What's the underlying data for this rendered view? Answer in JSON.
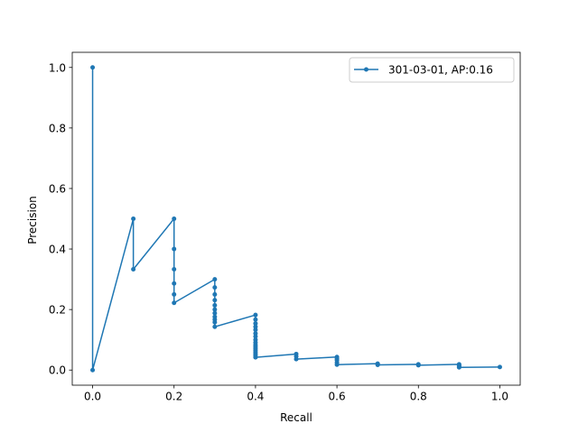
{
  "chart_data": {
    "type": "line",
    "title": "",
    "xlabel": "Recall",
    "ylabel": "Precision",
    "xlim": [
      -0.05,
      1.05
    ],
    "ylim": [
      -0.05,
      1.05
    ],
    "xticks": [
      0.0,
      0.2,
      0.4,
      0.6,
      0.8,
      1.0
    ],
    "xtick_labels": [
      "0.0",
      "0.2",
      "0.4",
      "0.6",
      "0.8",
      "1.0"
    ],
    "yticks": [
      0.0,
      0.2,
      0.4,
      0.6,
      0.8,
      1.0
    ],
    "ytick_labels": [
      "0.0",
      "0.2",
      "0.4",
      "0.6",
      "0.8",
      "1.0"
    ],
    "grid": false,
    "legend_position": "top-right",
    "color": "#1f77b4",
    "series": [
      {
        "name": "301-03-01, AP:0.16",
        "x": [
          0.0,
          0.0,
          0.1,
          0.1,
          0.2,
          0.2,
          0.2,
          0.2,
          0.2,
          0.2,
          0.3,
          0.3,
          0.3,
          0.3,
          0.3,
          0.3,
          0.3,
          0.3,
          0.3,
          0.3,
          0.3,
          0.4,
          0.4,
          0.4,
          0.4,
          0.4,
          0.4,
          0.4,
          0.4,
          0.4,
          0.4,
          0.4,
          0.4,
          0.4,
          0.4,
          0.4,
          0.4,
          0.4,
          0.5,
          0.5,
          0.5,
          0.6,
          0.6,
          0.6,
          0.6,
          0.6,
          0.7,
          0.7,
          0.7,
          0.8,
          0.8,
          0.8,
          0.9,
          0.9,
          0.9,
          0.9,
          0.9,
          1.0
        ],
        "y": [
          1.0,
          0.0,
          0.5,
          0.333,
          0.5,
          0.4,
          0.333,
          0.286,
          0.25,
          0.222,
          0.3,
          0.273,
          0.25,
          0.231,
          0.214,
          0.2,
          0.188,
          0.176,
          0.167,
          0.158,
          0.143,
          0.182,
          0.167,
          0.154,
          0.143,
          0.133,
          0.121,
          0.111,
          0.1,
          0.091,
          0.083,
          0.077,
          0.071,
          0.065,
          0.059,
          0.053,
          0.048,
          0.042,
          0.053,
          0.045,
          0.036,
          0.043,
          0.038,
          0.033,
          0.025,
          0.018,
          0.021,
          0.019,
          0.017,
          0.019,
          0.017,
          0.016,
          0.019,
          0.016,
          0.013,
          0.011,
          0.009,
          0.01
        ]
      }
    ]
  }
}
